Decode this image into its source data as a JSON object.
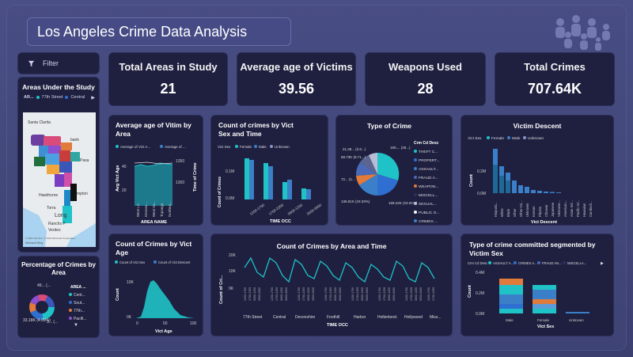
{
  "title": "Los Angeles Crime Data Analysis",
  "colors": {
    "teal": "#1fc2c7",
    "blue": "#2f6fd1",
    "steel": "#3b7fc8",
    "dark": "#1f2040"
  },
  "filter": {
    "label": "Filter"
  },
  "areas_map": {
    "title": "Areas Under the Study",
    "legend_prefix": "AR...",
    "legend_items": [
      "77th Street",
      "Central"
    ],
    "places": [
      "Santa Clarita",
      "bank",
      "Pasa",
      "Hawthorne",
      "Torra",
      "Long",
      "Ranchs P",
      "Verdes",
      "mpton"
    ],
    "attribution": "© 2024 TomTom, © 2024 Microsoft Corporation",
    "brand": "Microsoft Bing"
  },
  "percentage": {
    "title": "Percentage of Crimes by Area",
    "legend_title": "AREA ...",
    "legend_items": [
      "Cent...",
      "Sout...",
      "77th...",
      "Pacifi..."
    ],
    "label_top": "49... (...",
    "label_left": "33.18K (4.69%)",
    "label_right": "3... (..."
  },
  "kpis": [
    {
      "label": "Total Areas in Study",
      "value": "21"
    },
    {
      "label": "Average age of Victims",
      "value": "39.56"
    },
    {
      "label": "Weapons Used",
      "value": "28"
    },
    {
      "label": "Total Crimes",
      "value": "707.64K"
    }
  ],
  "avg_age_area": {
    "title": "Average age of Vitim by Area",
    "legend": [
      "Average of Vict A...",
      "Average of ..."
    ],
    "y_left": "Avg Vict Age",
    "y_right": "Time of Crime",
    "y_right_ticks": [
      "1350",
      "1300"
    ],
    "y_left_ticks": [
      "40",
      "20"
    ],
    "x_ticks": [
      "West LA",
      "Devons...",
      "West Va...",
      "Topanga",
      "Northea..."
    ],
    "xlabel": "AREA NAME"
  },
  "vict_sex_time": {
    "title": "Count of crimes by Vict Sex and Time",
    "legend_prefix": "Vict Sex",
    "legend": [
      "Female",
      "Male",
      "Unknown"
    ],
    "ylabel": "Count of Crimes",
    "y_ticks": [
      "0.1M",
      "0.0M"
    ],
    "x_ticks": [
      "1200-1700",
      "1700-2359",
      "0600-1200",
      "0000-0600"
    ],
    "xlabel": "TIME OCC"
  },
  "type_crime": {
    "title": "Type of Crime",
    "legend_title": "Crm Cd Desc",
    "legend": [
      "THEFT C...",
      "PROPERT...",
      "ASSAULT...",
      "FRAUD A...",
      "WEAPON...",
      "MISCELL...",
      "SEXUAL...",
      "PUBLIC O...",
      "CRIMES ..."
    ],
    "labels": {
      "top_left": "21,39... (3.0...)",
      "top_right": "180,... (25...)",
      "l2": "68.73K (9.71...)",
      "l3": "72... (1...",
      "bottom_left": "136.81K (19.33%)",
      "bottom_right": "169.22K (23.91%)"
    }
  },
  "victim_descent": {
    "title": "Victim Descent",
    "legend_prefix": "Vict Sex",
    "legend": [
      "Female",
      "Male",
      "Unknown"
    ],
    "ylabel": "Count",
    "y_ticks": [
      "0.2M",
      "0.0M"
    ],
    "x_ticks": [
      "Hispanic...",
      "White",
      "Black",
      "Other",
      "Other Asi...",
      "Unknown",
      "Korean",
      "Filipino",
      "Chinese",
      "Japanese",
      "Vietname...",
      "American...",
      "Asian Ind...",
      "Pacific Isl...",
      "Hawaiian",
      "Cambodi..."
    ],
    "xlabel": "Vict Descent"
  },
  "vict_age": {
    "title": "Count of Crimes by Vict Age",
    "legend": [
      "Count of Vict Sex",
      "Count of Vict Descent"
    ],
    "ylabel": "Count",
    "y_ticks": [
      "10K",
      "0K"
    ],
    "x_ticks": [
      "0",
      "50",
      "100"
    ],
    "xlabel": "Vict Age"
  },
  "area_time": {
    "title": "Count of Crimes by Area and Time",
    "ylabel": "Count of Cri...",
    "y_ticks": [
      "20K",
      "10K",
      "0K"
    ],
    "area_names": [
      "77th Street",
      "Central",
      "Devonshire",
      "Foothill",
      "Harbor",
      "Hollenbeck",
      "Hollywood",
      "Miss..."
    ],
    "xlabel": "TIME OCC"
  },
  "segmented": {
    "title": "Type of crime committed segmented by Victim Sex",
    "legend_prefix": "Crm Cd Desc",
    "legend": [
      "ASSAULT A...",
      "CRIMES A...",
      "FRAUD AN...",
      "MISCELLA..."
    ],
    "ylabel": "Count",
    "y_ticks": [
      "0.4M",
      "0.2M",
      "0.0M"
    ],
    "x_ticks": [
      "Male",
      "Female",
      "Unknown"
    ],
    "xlabel": "Vict Sex"
  }
}
